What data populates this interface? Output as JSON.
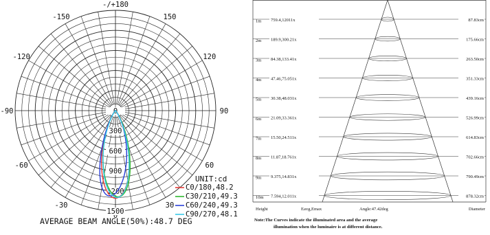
{
  "polar": {
    "angle_labels": [
      {
        "text": "-/+180",
        "deg": 180
      },
      {
        "text": "150",
        "deg": 150
      },
      {
        "text": "-150",
        "deg": -150
      },
      {
        "text": "120",
        "deg": 120
      },
      {
        "text": "-120",
        "deg": -120
      },
      {
        "text": "90",
        "deg": 90
      },
      {
        "text": "-90",
        "deg": -90
      },
      {
        "text": "60",
        "deg": 60
      },
      {
        "text": "-60",
        "deg": -60
      },
      {
        "text": "30",
        "deg": 30
      },
      {
        "text": "-30",
        "deg": -30
      },
      {
        "text": "0",
        "deg": 0
      }
    ],
    "radial_labels": [
      "0",
      "300",
      "600",
      "900",
      "1200",
      "1500"
    ],
    "unit_label": "UNIT:cd",
    "footer": "AVERAGE BEAM ANGLE(50%):48.7 DEG"
  },
  "cone": {
    "rows": [
      {
        "height": "1m",
        "values": "759.4,12011x",
        "diameter": "87.83cm"
      },
      {
        "height": "2m",
        "values": "189.9,300.21x",
        "diameter": "175.66cm"
      },
      {
        "height": "3m",
        "values": "84.38,133.41x",
        "diameter": "263.50cm"
      },
      {
        "height": "4m",
        "values": "47.46,75.051x",
        "diameter": "351.33cm"
      },
      {
        "height": "5m",
        "values": "30.38,48.031x",
        "diameter": "439.16cm"
      },
      {
        "height": "6m",
        "values": "21.09,33.361x",
        "diameter": "526.99cm"
      },
      {
        "height": "7m",
        "values": "15.50,24.511x",
        "diameter": "614.83cm"
      },
      {
        "height": "8m",
        "values": "11.87,18.761x",
        "diameter": "702.66cm"
      },
      {
        "height": "9m",
        "values": "9.375,14.831x",
        "diameter": "790.49cm"
      },
      {
        "height": "10m",
        "values": "7.594,12.011x",
        "diameter": "878.32cm"
      }
    ],
    "header_height": "Height",
    "header_values": "Eavg,Emax",
    "header_angle": "Angle:47.42deg",
    "header_diameter": "Diameter",
    "note_line1": "Note:The Curves indicate the illuminated area and the average",
    "note_line2": "illumination when the luminaire is at different distance."
  },
  "chart_data": [
    {
      "type": "polar",
      "title": "",
      "radial_axis": {
        "unit": "cd",
        "range": [
          0,
          1500
        ],
        "ticks": [
          0,
          300,
          600,
          900,
          1200,
          1500
        ]
      },
      "angular_axis": {
        "ticks_deg": [
          0,
          30,
          60,
          90,
          120,
          150,
          180,
          -150,
          -120,
          -90,
          -60,
          -30
        ]
      },
      "legend_position": "bottom-right",
      "series": [
        {
          "name": "C0/180,48.2",
          "color": "#e53935",
          "half_angle_deg": 24.1,
          "peak_cd": 1310
        },
        {
          "name": "C30/210,49.3",
          "color": "#2eb82e",
          "half_angle_deg": 24.65,
          "peak_cd": 1290
        },
        {
          "name": "C60/240,49.3",
          "color": "#2a3fd8",
          "half_angle_deg": 24.65,
          "peak_cd": 1280
        },
        {
          "name": "C90/270,48.1",
          "color": "#38c8e8",
          "half_angle_deg": 24.05,
          "peak_cd": 1300
        }
      ],
      "beam_angle_avg_deg": 48.7
    },
    {
      "type": "table",
      "title": "",
      "beam_angle_deg": 47.42,
      "columns": [
        "Height",
        "Eavg,Emax",
        "Diameter"
      ],
      "rows": [
        [
          "1m",
          "759.4,12011x",
          "87.83cm"
        ],
        [
          "2m",
          "189.9,300.21x",
          "175.66cm"
        ],
        [
          "3m",
          "84.38,133.41x",
          "263.50cm"
        ],
        [
          "4m",
          "47.46,75.051x",
          "351.33cm"
        ],
        [
          "5m",
          "30.38,48.031x",
          "439.16cm"
        ],
        [
          "6m",
          "21.09,33.361x",
          "526.99cm"
        ],
        [
          "7m",
          "15.50,24.511x",
          "614.83cm"
        ],
        [
          "8m",
          "11.87,18.761x",
          "702.66cm"
        ],
        [
          "9m",
          "9.375,14.831x",
          "790.49cm"
        ],
        [
          "10m",
          "7.594,12.011x",
          "878.32cm"
        ]
      ]
    }
  ]
}
